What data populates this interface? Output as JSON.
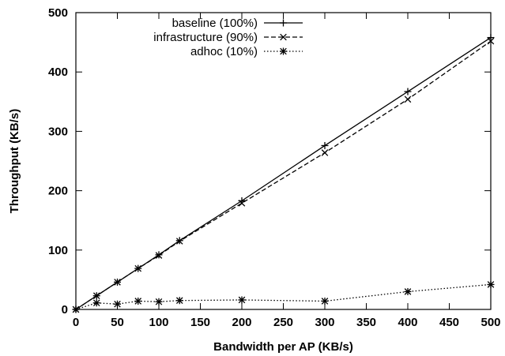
{
  "chart_data": {
    "type": "line",
    "title": "",
    "xlabel": "Bandwidth per AP (KB/s)",
    "ylabel": "Throughput (KB/s)",
    "xlim": [
      0,
      500
    ],
    "ylim": [
      0,
      500
    ],
    "xticks": [
      0,
      50,
      100,
      150,
      200,
      250,
      300,
      350,
      400,
      450,
      500
    ],
    "yticks": [
      0,
      100,
      200,
      300,
      400,
      500
    ],
    "grid": false,
    "legend_position": "top-left",
    "series": [
      {
        "name": "baseline (100%)",
        "line_style": "solid",
        "marker": "plus",
        "x": [
          0,
          25,
          50,
          75,
          100,
          125,
          200,
          300,
          400,
          500
        ],
        "y": [
          0,
          23,
          46,
          69,
          92,
          116,
          183,
          276,
          367,
          458
        ]
      },
      {
        "name": "infrastructure (90%)",
        "line_style": "dashed",
        "marker": "cross",
        "x": [
          0,
          25,
          50,
          75,
          100,
          125,
          200,
          300,
          400,
          500
        ],
        "y": [
          0,
          23,
          46,
          69,
          91,
          115,
          179,
          264,
          354,
          452
        ]
      },
      {
        "name": "adhoc (10%)",
        "line_style": "dotted",
        "marker": "star",
        "x": [
          0,
          25,
          50,
          75,
          100,
          125,
          200,
          300,
          400,
          500
        ],
        "y": [
          0,
          11,
          9,
          14,
          13,
          15,
          16,
          14,
          30,
          42
        ]
      }
    ]
  }
}
